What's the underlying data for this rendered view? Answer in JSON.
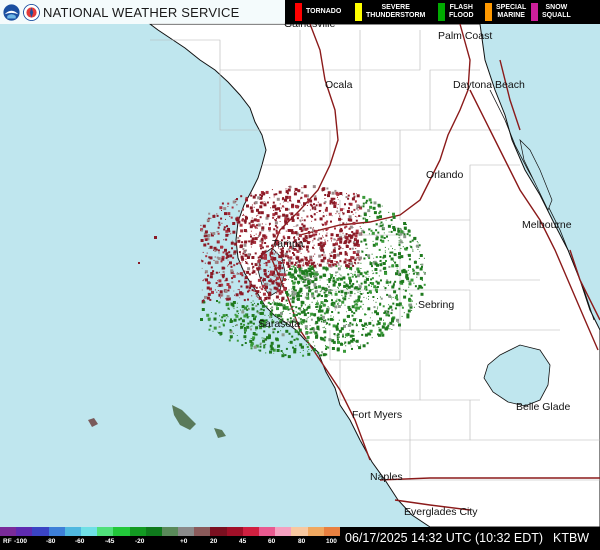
{
  "header": {
    "agency_title": "NATIONAL WEATHER SERVICE",
    "logos": [
      "noaa-logo",
      "nws-logo"
    ]
  },
  "warning_legend": [
    {
      "label": "TORNADO",
      "color": "#ff0000"
    },
    {
      "label": "SEVERE\nTHUNDERSTORM",
      "color": "#ffff00"
    },
    {
      "label": "FLASH\nFLOOD",
      "color": "#00aa00"
    },
    {
      "label": "SPECIAL\nMARINE",
      "color": "#ff9900"
    },
    {
      "label": "SNOW\nSQUALL",
      "color": "#cc1f9a"
    }
  ],
  "cities": [
    {
      "name": "Gainesville"
    },
    {
      "name": "Palm Coast"
    },
    {
      "name": "Ocala"
    },
    {
      "name": "Daytona Beach"
    },
    {
      "name": "Orlando"
    },
    {
      "name": "Tampa"
    },
    {
      "name": "Melbourne"
    },
    {
      "name": "Sebring"
    },
    {
      "name": "Sarasota"
    },
    {
      "name": "Fort Myers"
    },
    {
      "name": "Belle Glade"
    },
    {
      "name": "Naples"
    },
    {
      "name": "Everglades City"
    }
  ],
  "scale": {
    "prefix": "RF",
    "ticks": [
      "-100",
      "-80",
      "-60",
      "-45",
      "-20",
      "+0",
      "20",
      "45",
      "60",
      "80",
      "100"
    ]
  },
  "footer": {
    "timestamp": "06/17/2025 14:32 UTC (10:32 EDT)",
    "station": "KTBW"
  },
  "colors": {
    "water": "#bfe6ee",
    "land": "#ffffff",
    "roads": "#8b1a1a",
    "velocity_inbound": "#1f7a1f",
    "velocity_outbound": "#8a1a26"
  }
}
